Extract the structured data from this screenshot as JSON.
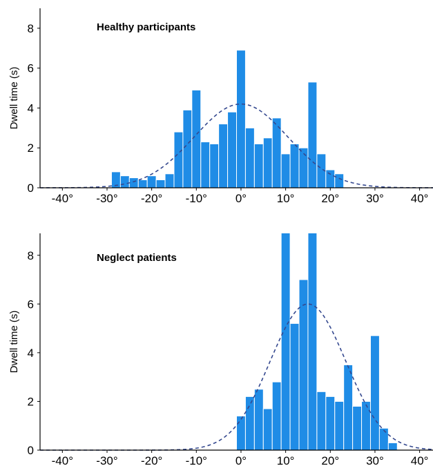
{
  "colors": {
    "bar": "#1f8ce6",
    "curve": "#34488f"
  },
  "chart_data": [
    {
      "type": "bar",
      "title": "Healthy participants",
      "xlabel": "",
      "ylabel": "Dwell time (s)",
      "xlim": [
        -45,
        43
      ],
      "ylim": [
        0,
        9
      ],
      "x_ticks": [
        -40,
        -30,
        -20,
        -10,
        0,
        10,
        20,
        30,
        40
      ],
      "x_tick_labels": [
        "-40°",
        "-30°",
        "-20°",
        "-10°",
        "0°",
        "10°",
        "20°",
        "30°",
        "40°"
      ],
      "y_ticks": [
        0,
        2,
        4,
        6,
        8
      ],
      "y_tick_labels": [
        "0",
        "2",
        "4",
        "6",
        "8"
      ],
      "bin_width": 2,
      "bin_start": [
        -29,
        -27,
        -25,
        -23,
        -21,
        -19,
        -17,
        -15,
        -13,
        -11,
        -9,
        -7,
        -5,
        -3,
        -1,
        1,
        3,
        5,
        7,
        9,
        11,
        13,
        15,
        17,
        19,
        21
      ],
      "values": [
        0.8,
        0.6,
        0.5,
        0.4,
        0.6,
        0.4,
        0.7,
        2.8,
        3.9,
        4.9,
        2.3,
        2.2,
        3.2,
        3.8,
        6.9,
        3.0,
        2.2,
        2.5,
        3.5,
        1.7,
        2.2,
        2.0,
        5.3,
        1.7,
        0.9,
        0.7
      ],
      "normal_fit": {
        "mean": 0,
        "sd": 10.5,
        "peak": 4.2
      },
      "grid": false
    },
    {
      "type": "bar",
      "title": "Neglect patients",
      "xlabel": "",
      "ylabel": "Dwell time (s)",
      "xlim": [
        -45,
        43
      ],
      "ylim": [
        0,
        8.9
      ],
      "x_ticks": [
        -40,
        -30,
        -20,
        -10,
        0,
        10,
        20,
        30,
        40
      ],
      "x_tick_labels": [
        "-40°",
        "-30°",
        "-20°",
        "-10°",
        "0°",
        "10°",
        "20°",
        "30°",
        "40°"
      ],
      "y_ticks": [
        0,
        2,
        4,
        6,
        8
      ],
      "y_tick_labels": [
        "0",
        "2",
        "4",
        "6",
        "8"
      ],
      "bin_width": 2,
      "bin_start": [
        -1,
        1,
        3,
        5,
        7,
        9,
        11,
        13,
        15,
        17,
        19,
        21,
        23,
        25,
        27,
        29,
        31,
        33
      ],
      "values": [
        1.4,
        2.2,
        2.5,
        1.7,
        2.8,
        9.0,
        5.2,
        7.0,
        9.0,
        2.4,
        2.2,
        2.0,
        3.5,
        1.8,
        2.0,
        4.7,
        0.9,
        0.3
      ],
      "normal_fit": {
        "mean": 15,
        "sd": 8.5,
        "peak": 6.0
      },
      "grid": false
    }
  ]
}
